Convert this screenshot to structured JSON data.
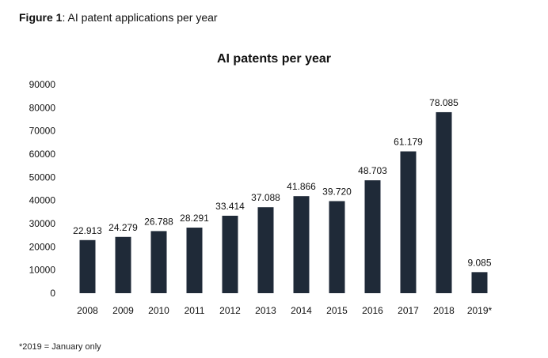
{
  "figure": {
    "label": "Figure 1",
    "caption": ": AI patent applications per year"
  },
  "footnote": "*2019 = January only",
  "colors": {
    "bar": "#1f2a38"
  },
  "chart_data": {
    "type": "bar",
    "title": "AI patents per year",
    "xlabel": "",
    "ylabel": "",
    "categories": [
      "2008",
      "2009",
      "2010",
      "2011",
      "2012",
      "2013",
      "2014",
      "2015",
      "2016",
      "2017",
      "2018",
      "2019*"
    ],
    "values": [
      22913,
      24279,
      26788,
      28291,
      33414,
      37088,
      41866,
      39720,
      48703,
      61179,
      78085,
      9085
    ],
    "value_labels": [
      "22.913",
      "24.279",
      "26.788",
      "28.291",
      "33.414",
      "37.088",
      "41.866",
      "39.720",
      "48.703",
      "61.179",
      "78.085",
      "9.085"
    ],
    "ylim": [
      0,
      90000
    ],
    "yticks": [
      0,
      10000,
      20000,
      30000,
      40000,
      50000,
      60000,
      70000,
      80000,
      90000
    ],
    "grid": false,
    "legend": "none"
  }
}
